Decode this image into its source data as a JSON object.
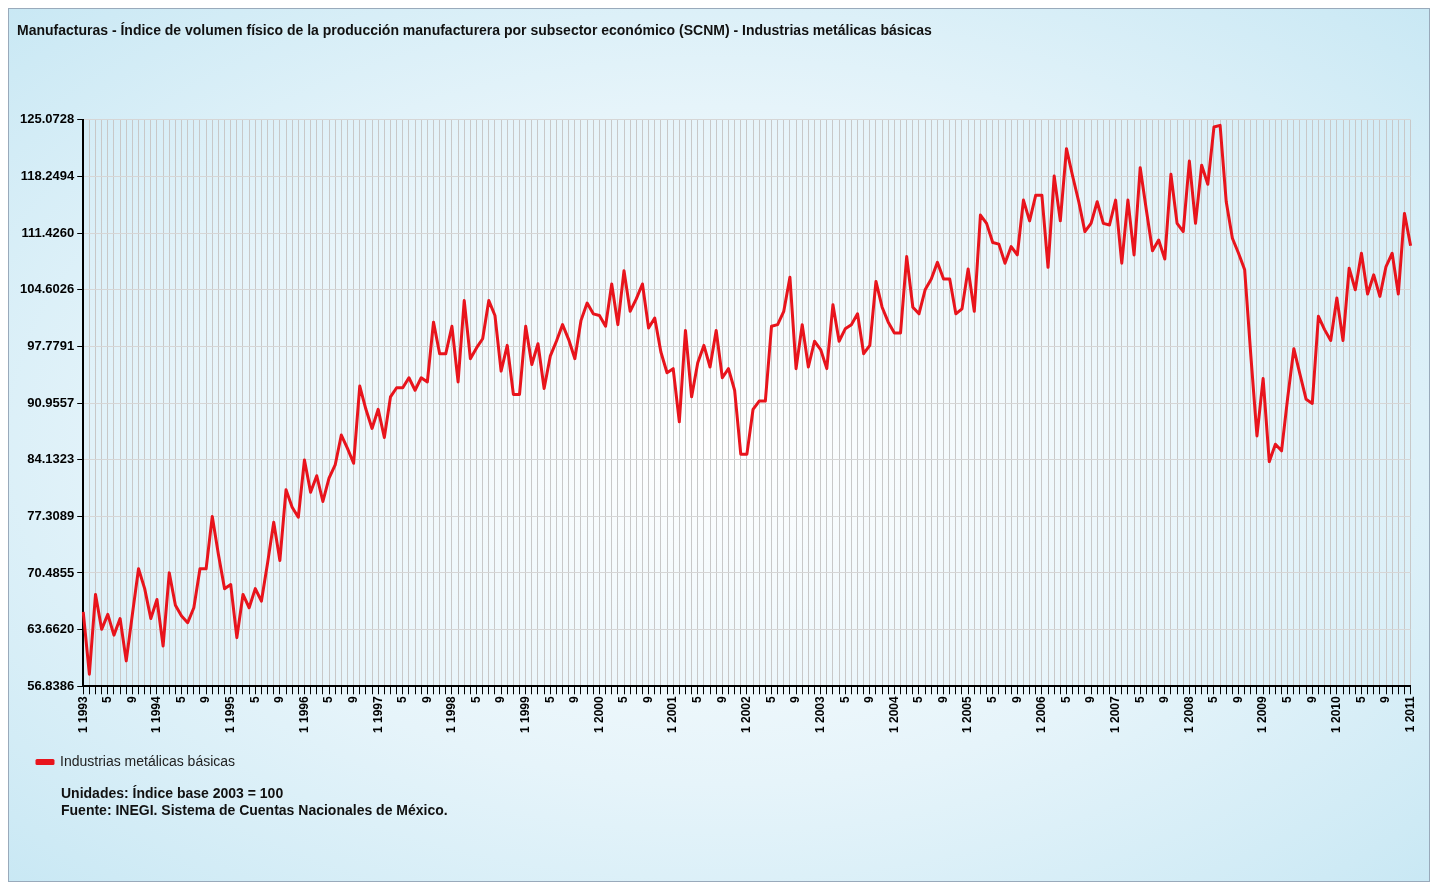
{
  "chart_data": {
    "type": "line",
    "title": "Manufacturas - Índice de volumen físico de la producción manufacturera por subsector económico (SCNM) - Industrias metálicas básicas",
    "categories": [
      "1 1993",
      null,
      null,
      null,
      "5",
      null,
      null,
      null,
      "9",
      null,
      null,
      null,
      "1 1994",
      null,
      null,
      null,
      "5",
      null,
      null,
      null,
      "9",
      null,
      null,
      null,
      "1 1995",
      null,
      null,
      null,
      "5",
      null,
      null,
      null,
      "9",
      null,
      null,
      null,
      "1 1996",
      null,
      null,
      null,
      "5",
      null,
      null,
      null,
      "9",
      null,
      null,
      null,
      "1 1997",
      null,
      null,
      null,
      "5",
      null,
      null,
      null,
      "9",
      null,
      null,
      null,
      "1 1998",
      null,
      null,
      null,
      "5",
      null,
      null,
      null,
      "9",
      null,
      null,
      null,
      "1 1999",
      null,
      null,
      null,
      "5",
      null,
      null,
      null,
      "9",
      null,
      null,
      null,
      "1 2000",
      null,
      null,
      null,
      "5",
      null,
      null,
      null,
      "9",
      null,
      null,
      null,
      "1 2001",
      null,
      null,
      null,
      "5",
      null,
      null,
      null,
      "9",
      null,
      null,
      null,
      "1 2002",
      null,
      null,
      null,
      "5",
      null,
      null,
      null,
      "9",
      null,
      null,
      null,
      "1 2003",
      null,
      null,
      null,
      "5",
      null,
      null,
      null,
      "9",
      null,
      null,
      null,
      "1 2004",
      null,
      null,
      null,
      "5",
      null,
      null,
      null,
      "9",
      null,
      null,
      null,
      "1 2005",
      null,
      null,
      null,
      "5",
      null,
      null,
      null,
      "9",
      null,
      null,
      null,
      "1 2006",
      null,
      null,
      null,
      "5",
      null,
      null,
      null,
      "9",
      null,
      null,
      null,
      "1 2007",
      null,
      null,
      null,
      "5",
      null,
      null,
      null,
      "9",
      null,
      null,
      null,
      "1 2008",
      null,
      null,
      null,
      "5",
      null,
      null,
      null,
      "9",
      null,
      null,
      null,
      "1 2009",
      null,
      null,
      null,
      "5",
      null,
      null,
      null,
      "9",
      null,
      null,
      null,
      "1 2010",
      null,
      null,
      null,
      "5",
      null,
      null,
      null,
      "9",
      null,
      null,
      null,
      "1 2011"
    ],
    "series": [
      {
        "name": "Industrias metálicas básicas",
        "color": "#e8141c",
        "values": [
          65.8,
          58.3,
          67.9,
          63.7,
          65.5,
          63.0,
          65.0,
          59.9,
          65.5,
          71.0,
          68.6,
          65.0,
          67.3,
          61.7,
          70.5,
          66.6,
          65.3,
          64.5,
          66.3,
          71.0,
          71.0,
          77.3,
          72.7,
          68.6,
          69.1,
          62.7,
          67.9,
          66.3,
          68.6,
          67.1,
          71.7,
          76.6,
          72.0,
          80.5,
          78.4,
          77.2,
          84.1,
          80.2,
          82.2,
          79.1,
          81.9,
          83.5,
          87.1,
          85.5,
          83.7,
          93.0,
          90.2,
          87.9,
          90.2,
          86.8,
          91.7,
          92.8,
          92.8,
          94.0,
          92.5,
          94.0,
          93.5,
          100.7,
          96.9,
          96.9,
          100.2,
          93.5,
          103.3,
          96.3,
          97.6,
          98.7,
          103.3,
          101.5,
          94.8,
          97.9,
          92.0,
          92.0,
          100.2,
          95.6,
          98.1,
          92.7,
          96.6,
          98.4,
          100.4,
          98.6,
          96.3,
          100.9,
          103.0,
          101.7,
          101.5,
          100.2,
          105.3,
          100.4,
          106.9,
          102.0,
          103.5,
          105.3,
          100.0,
          101.2,
          97.1,
          94.6,
          95.1,
          88.7,
          99.7,
          91.7,
          95.8,
          97.9,
          95.3,
          99.7,
          94.0,
          95.1,
          92.5,
          84.8,
          84.8,
          90.2,
          91.2,
          91.2,
          100.2,
          100.4,
          102.0,
          106.1,
          95.1,
          100.4,
          95.3,
          98.4,
          97.4,
          95.1,
          102.8,
          98.4,
          99.9,
          100.4,
          101.7,
          96.9,
          97.9,
          105.6,
          102.5,
          100.7,
          99.4,
          99.4,
          108.6,
          102.5,
          101.7,
          104.6,
          105.9,
          107.9,
          105.9,
          105.9,
          101.7,
          102.3,
          107.1,
          102.0,
          113.6,
          112.6,
          110.3,
          110.1,
          107.8,
          109.8,
          108.8,
          115.4,
          112.9,
          116.0,
          116.0,
          107.3,
          118.3,
          112.9,
          121.6,
          118.3,
          115.2,
          111.6,
          112.6,
          115.2,
          112.6,
          112.4,
          115.4,
          107.8,
          115.4,
          108.8,
          119.3,
          114.2,
          109.3,
          110.6,
          108.3,
          118.5,
          112.6,
          111.6,
          120.1,
          112.6,
          119.6,
          117.3,
          124.2,
          124.4,
          115.2,
          110.8,
          109.0,
          107.0,
          96.7,
          87.0,
          93.9,
          83.9,
          86.0,
          85.2,
          91.6,
          97.5,
          94.4,
          91.4,
          90.9,
          101.4,
          99.8,
          98.5,
          103.6,
          98.5,
          107.2,
          104.6,
          109.0,
          104.1,
          106.4,
          103.8,
          107.4,
          109.0,
          104.1,
          113.8,
          109.9
        ]
      }
    ],
    "ylim": [
      56.8386,
      125.0728
    ],
    "yticks": [
      56.8386,
      {
        "value": 63.662,
        "label": "63.6620"
      },
      70.4855,
      77.3089,
      84.1323,
      90.9557,
      97.7791,
      104.6026,
      {
        "value": 111.426,
        "label": "111.4260"
      },
      118.2494,
      125.0728
    ],
    "grid": true,
    "legend": "bottom left",
    "marker": "none",
    "line_style": "solid",
    "annotations": [
      "Unidades: Índice base 2003 = 100",
      "Fuente: INEGI. Sistema de Cuentas Nacionales de México."
    ]
  }
}
